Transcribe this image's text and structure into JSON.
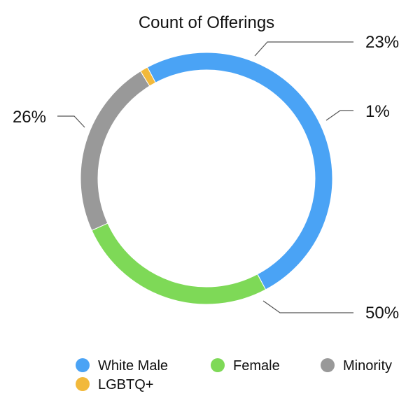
{
  "chart_data": {
    "type": "pie",
    "style": "donut",
    "title": "Count of Offerings",
    "start_angle_deg": -28,
    "direction": "clockwise",
    "categories": [
      "White Male",
      "Female",
      "Minority",
      "LGBTQ+"
    ],
    "values": [
      50,
      26,
      23,
      1
    ],
    "labels": [
      "50%",
      "26%",
      "23%",
      "1%"
    ],
    "colors": [
      "#4aa3f5",
      "#7ed957",
      "#999999",
      "#f2b93b"
    ],
    "legend_position": "bottom"
  }
}
